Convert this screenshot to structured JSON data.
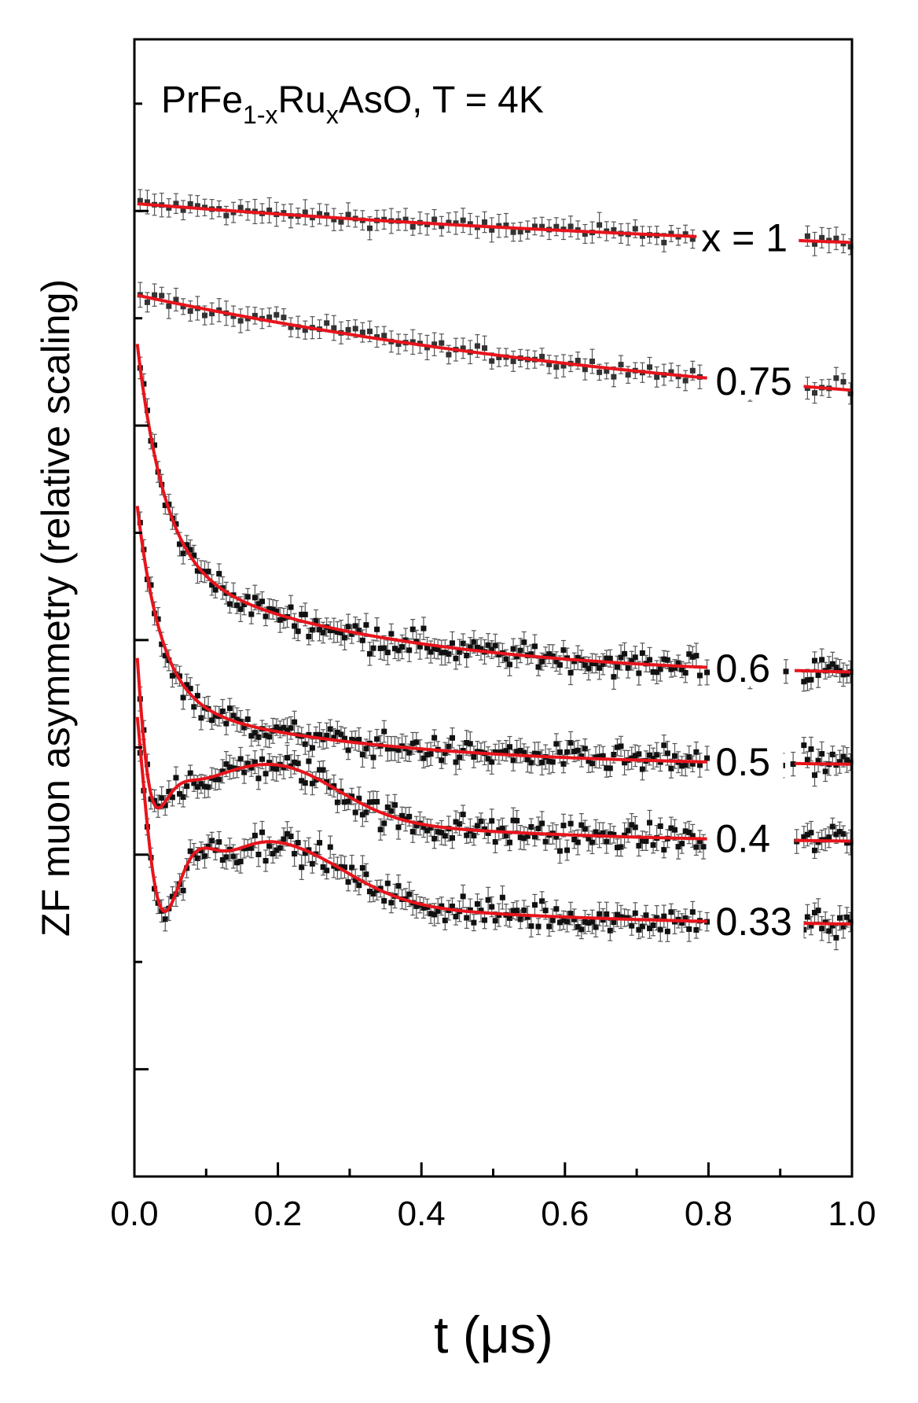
{
  "chart_data": {
    "type": "scatter",
    "title_parts": {
      "base": "PrFe",
      "sub1": "1-x",
      "mid": "Ru",
      "sub2": "x",
      "tail": "AsO, T = 4K"
    },
    "xlabel": "t (μs)",
    "ylabel": "ZF muon asymmetry (relative scaling)",
    "xlim": [
      0.0,
      1.0
    ],
    "ylim": [
      -1.0,
      9.6
    ],
    "x_ticks": [
      "0.0",
      "0.2",
      "0.4",
      "0.6",
      "0.8",
      "1.0"
    ],
    "x_tick_values": [
      0.0,
      0.2,
      0.4,
      0.6,
      0.8,
      1.0
    ],
    "y_major_ticks": [
      0,
      2,
      4,
      6,
      8
    ],
    "colors": {
      "fit": "#e8141c",
      "data": "#111111",
      "axis": "#000000"
    },
    "series": [
      {
        "name": "x = 1",
        "label": "x = 1",
        "fit": {
          "model": "exp",
          "base": 7.42,
          "amp": 0.65,
          "lambda": 0.82
        },
        "noise": 0.06
      },
      {
        "name": "0.75",
        "label": "0.75",
        "fit": {
          "model": "exp",
          "base": 5.85,
          "amp": 1.37,
          "lambda": 1.05
        },
        "noise": 0.07
      },
      {
        "name": "0.6",
        "label": "0.6",
        "fit": {
          "model": "two-exp",
          "base": 3.65,
          "fast": 2.3,
          "fast_rate": 26,
          "slow": 1.05,
          "slow_rate": 3.0
        },
        "noise": 0.12
      },
      {
        "name": "0.5",
        "label": "0.5",
        "fit": {
          "model": "two-exp",
          "base": 2.82,
          "fast": 2.05,
          "fast_rate": 30,
          "slow": 0.62,
          "slow_rate": 3.3
        },
        "noise": 0.12
      },
      {
        "name": "0.4",
        "label": "0.4",
        "fit": {
          "model": "osc",
          "base": 2.1,
          "amp": 1.55,
          "damp": 55,
          "freq": 12,
          "slow_amp": 0.52,
          "slow_rate": 3.0,
          "bump": 0.45,
          "bump_center": 0.2,
          "bump_width": 0.12
        },
        "noise": 0.14
      },
      {
        "name": "0.33",
        "label": "0.33",
        "fit": {
          "model": "osc",
          "base": 1.32,
          "amp": 1.65,
          "damp": 30,
          "freq": 10,
          "slow_amp": 0.5,
          "slow_rate": 2.7,
          "bump": 0.5,
          "bump_center": 0.2,
          "bump_width": 0.13
        },
        "noise": 0.14
      }
    ]
  }
}
